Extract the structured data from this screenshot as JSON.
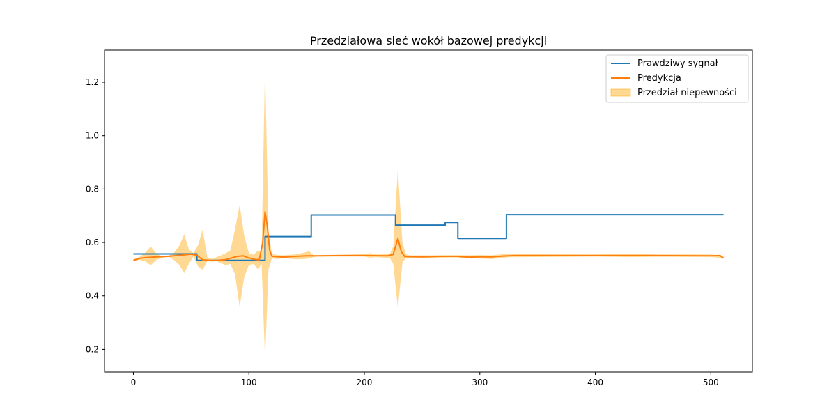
{
  "chart_data": {
    "type": "line",
    "title": "Przedziałowa sieć wokół bazowej predykcji",
    "xlabel": "",
    "ylabel": "",
    "xlim": [
      -25,
      536
    ],
    "ylim": [
      0.115,
      1.32
    ],
    "xticks": [
      0,
      100,
      200,
      300,
      400,
      500
    ],
    "yticks": [
      0.2,
      0.4,
      0.6,
      0.8,
      1.0,
      1.2
    ],
    "grid": false,
    "legend_position": "top-right",
    "series": [
      {
        "name": "Prawdziwy sygnał",
        "color": "#1f77b4",
        "kind": "line",
        "points": [
          [
            0,
            0.557
          ],
          [
            55,
            0.557
          ],
          [
            55,
            0.533
          ],
          [
            114,
            0.533
          ],
          [
            114,
            0.622
          ],
          [
            154,
            0.622
          ],
          [
            154,
            0.703
          ],
          [
            227,
            0.703
          ],
          [
            227,
            0.665
          ],
          [
            270,
            0.665
          ],
          [
            270,
            0.675
          ],
          [
            281,
            0.675
          ],
          [
            281,
            0.615
          ],
          [
            323,
            0.615
          ],
          [
            323,
            0.704
          ],
          [
            511,
            0.704
          ]
        ]
      },
      {
        "name": "Predykcja",
        "color": "#ff7f0e",
        "kind": "line",
        "points": [
          [
            0,
            0.533
          ],
          [
            5,
            0.54
          ],
          [
            10,
            0.543
          ],
          [
            20,
            0.546
          ],
          [
            30,
            0.548
          ],
          [
            40,
            0.552
          ],
          [
            50,
            0.556
          ],
          [
            55,
            0.552
          ],
          [
            60,
            0.535
          ],
          [
            70,
            0.532
          ],
          [
            80,
            0.536
          ],
          [
            90,
            0.548
          ],
          [
            95,
            0.55
          ],
          [
            100,
            0.542
          ],
          [
            105,
            0.537
          ],
          [
            109,
            0.535
          ],
          [
            112,
            0.6
          ],
          [
            114,
            0.715
          ],
          [
            116,
            0.66
          ],
          [
            118,
            0.57
          ],
          [
            120,
            0.548
          ],
          [
            130,
            0.545
          ],
          [
            140,
            0.548
          ],
          [
            150,
            0.55
          ],
          [
            160,
            0.55
          ],
          [
            180,
            0.551
          ],
          [
            200,
            0.551
          ],
          [
            220,
            0.55
          ],
          [
            225,
            0.555
          ],
          [
            229,
            0.615
          ],
          [
            232,
            0.565
          ],
          [
            235,
            0.547
          ],
          [
            250,
            0.546
          ],
          [
            270,
            0.548
          ],
          [
            280,
            0.548
          ],
          [
            290,
            0.545
          ],
          [
            300,
            0.546
          ],
          [
            310,
            0.546
          ],
          [
            320,
            0.549
          ],
          [
            330,
            0.551
          ],
          [
            350,
            0.551
          ],
          [
            400,
            0.551
          ],
          [
            450,
            0.551
          ],
          [
            500,
            0.55
          ],
          [
            508,
            0.551
          ],
          [
            511,
            0.541
          ]
        ]
      },
      {
        "name": "Przedział niepewności",
        "color": "#ffa500",
        "opacity": 0.42,
        "kind": "band",
        "x": [
          0,
          5,
          10,
          15,
          20,
          25,
          30,
          35,
          40,
          44,
          48,
          52,
          56,
          60,
          64,
          68,
          72,
          76,
          80,
          84,
          88,
          92,
          96,
          100,
          104,
          108,
          111,
          114,
          117,
          120,
          125,
          130,
          140,
          148,
          152,
          156,
          160,
          180,
          200,
          205,
          210,
          222,
          225,
          229,
          233,
          236,
          240,
          260,
          280,
          290,
          300,
          310,
          320,
          325,
          330,
          400,
          430,
          450,
          500,
          511
        ],
        "lower": [
          0.53,
          0.535,
          0.53,
          0.515,
          0.535,
          0.542,
          0.548,
          0.535,
          0.515,
          0.485,
          0.52,
          0.548,
          0.51,
          0.498,
          0.53,
          0.528,
          0.53,
          0.522,
          0.515,
          0.52,
          0.48,
          0.36,
          0.47,
          0.515,
          0.52,
          0.498,
          0.52,
          0.16,
          0.5,
          0.54,
          0.538,
          0.542,
          0.537,
          0.538,
          0.54,
          0.545,
          0.547,
          0.547,
          0.547,
          0.543,
          0.545,
          0.542,
          0.52,
          0.355,
          0.525,
          0.542,
          0.542,
          0.543,
          0.544,
          0.54,
          0.54,
          0.538,
          0.542,
          0.545,
          0.545,
          0.547,
          0.545,
          0.546,
          0.546,
          0.54
        ],
        "upper": [
          0.537,
          0.545,
          0.56,
          0.585,
          0.557,
          0.548,
          0.55,
          0.56,
          0.59,
          0.63,
          0.575,
          0.56,
          0.59,
          0.648,
          0.545,
          0.538,
          0.545,
          0.552,
          0.56,
          0.57,
          0.65,
          0.74,
          0.625,
          0.56,
          0.554,
          0.57,
          0.56,
          1.265,
          0.64,
          0.557,
          0.553,
          0.552,
          0.555,
          0.562,
          0.568,
          0.553,
          0.553,
          0.554,
          0.556,
          0.56,
          0.555,
          0.556,
          0.585,
          0.875,
          0.6,
          0.555,
          0.552,
          0.552,
          0.553,
          0.552,
          0.553,
          0.552,
          0.556,
          0.558,
          0.556,
          0.555,
          0.558,
          0.555,
          0.555,
          0.55
        ]
      }
    ]
  }
}
